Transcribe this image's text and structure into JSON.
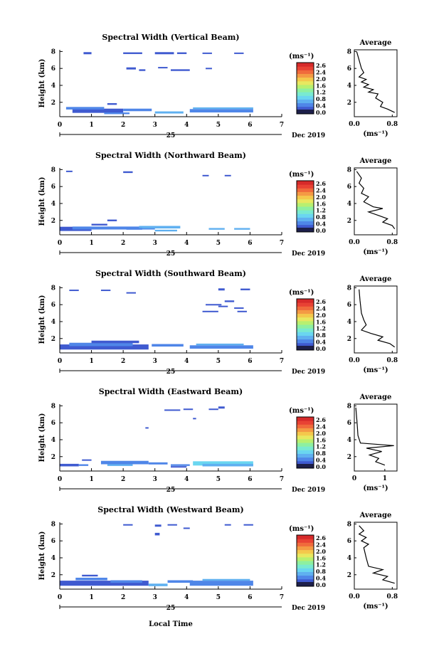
{
  "page": {
    "x_axis_title": "Local Time",
    "date_day": "25",
    "date_label": "Dec 2019",
    "units_label": "(ms⁻¹)",
    "avg_title": "Average",
    "avg_xlabel": "(ms⁻¹)",
    "height_label": "Height (km)"
  },
  "colormap": [
    "#2a2f8f",
    "#3f5ad0",
    "#4f86e8",
    "#5fb0f0",
    "#6ad6f0",
    "#79ead0",
    "#8ef0a0",
    "#b8f070",
    "#e8e860",
    "#f4c84c",
    "#f49a44",
    "#f06a3c",
    "#e84234",
    "#d62a2a"
  ],
  "colorbar": {
    "ticks_full": [
      "2.6",
      "2.4",
      "2.0",
      "1.6",
      "1.2",
      "0.8",
      "0.4",
      "0.0"
    ],
    "ticks_alt": [
      "2.6",
      "2.4",
      "2.0",
      "1.6",
      "1.2",
      "0.8",
      "0.4",
      "0.0"
    ]
  },
  "chart_data": [
    {
      "type": "heatmap",
      "title": "Spectral Width (Vertical Beam)",
      "ylabel": "Height (km)",
      "xlabel": "Local Time",
      "x_ticks": [
        "0",
        "1",
        "2",
        "3",
        "4",
        "5",
        "6",
        "7"
      ],
      "y_ticks": [
        "8",
        "6",
        "4",
        "2"
      ],
      "xlim": [
        0,
        7
      ],
      "ylim": [
        0.3,
        8.2
      ],
      "avg": {
        "title": "Average",
        "x_ticks": [
          "0.0",
          "0.8"
        ],
        "xlim": [
          0,
          0.9
        ],
        "profile": [
          [
            0.05,
            8
          ],
          [
            0.1,
            7
          ],
          [
            0.15,
            6
          ],
          [
            0.2,
            5.5
          ],
          [
            0.1,
            5
          ],
          [
            0.25,
            4.7
          ],
          [
            0.15,
            4.4
          ],
          [
            0.3,
            4.1
          ],
          [
            0.2,
            3.8
          ],
          [
            0.4,
            3.5
          ],
          [
            0.3,
            3.2
          ],
          [
            0.5,
            3
          ],
          [
            0.45,
            2.5
          ],
          [
            0.6,
            2
          ],
          [
            0.55,
            1.5
          ],
          [
            0.7,
            1.2
          ],
          [
            0.85,
            0.8
          ]
        ]
      }
    },
    {
      "type": "heatmap",
      "title": "Spectral Width (Northward Beam)",
      "ylabel": "Height (km)",
      "xlabel": "Local Time",
      "x_ticks": [
        "0",
        "1",
        "2",
        "3",
        "4",
        "5",
        "6",
        "7"
      ],
      "y_ticks": [
        "8",
        "6",
        "4",
        "2"
      ],
      "xlim": [
        0,
        7
      ],
      "ylim": [
        0.3,
        8.2
      ],
      "avg": {
        "title": "Average",
        "x_ticks": [
          "0.0",
          "0.8"
        ],
        "xlim": [
          0,
          0.9
        ],
        "profile": [
          [
            0.05,
            7.8
          ],
          [
            0.15,
            7
          ],
          [
            0.1,
            6.4
          ],
          [
            0.2,
            5.8
          ],
          [
            0.15,
            5.2
          ],
          [
            0.3,
            4.8
          ],
          [
            0.2,
            4.2
          ],
          [
            0.4,
            3.6
          ],
          [
            0.6,
            3.4
          ],
          [
            0.3,
            3
          ],
          [
            0.5,
            2.6
          ],
          [
            0.7,
            2.2
          ],
          [
            0.6,
            1.8
          ],
          [
            0.8,
            1.4
          ],
          [
            0.85,
            1
          ]
        ]
      }
    },
    {
      "type": "heatmap",
      "title": "Spectral Width (Southward Beam)",
      "ylabel": "Height (km)",
      "xlabel": "Local Time",
      "x_ticks": [
        "0",
        "1",
        "2",
        "3",
        "4",
        "5",
        "6",
        "7"
      ],
      "y_ticks": [
        "8",
        "6",
        "4",
        "2"
      ],
      "xlim": [
        0,
        7
      ],
      "ylim": [
        0.3,
        8.2
      ],
      "avg": {
        "title": "Average",
        "x_ticks": [
          "0.0",
          "0.8"
        ],
        "xlim": [
          0,
          0.9
        ],
        "profile": [
          [
            0.1,
            7.8
          ],
          [
            0.12,
            6.5
          ],
          [
            0.15,
            5
          ],
          [
            0.2,
            4.2
          ],
          [
            0.25,
            3.6
          ],
          [
            0.15,
            3
          ],
          [
            0.35,
            2.6
          ],
          [
            0.6,
            2.2
          ],
          [
            0.5,
            1.8
          ],
          [
            0.75,
            1.4
          ],
          [
            0.85,
            1
          ]
        ]
      }
    },
    {
      "type": "heatmap",
      "title": "Spectral Width (Eastward Beam)",
      "ylabel": "Height (km)",
      "xlabel": "Local Time",
      "x_ticks": [
        "0",
        "1",
        "2",
        "3",
        "4",
        "5",
        "6",
        "7"
      ],
      "y_ticks": [
        "8",
        "6",
        "4",
        "2"
      ],
      "xlim": [
        0,
        7
      ],
      "ylim": [
        0.3,
        8.2
      ],
      "avg": {
        "title": "Average",
        "x_ticks": [
          "0",
          "1"
        ],
        "xlim": [
          0,
          1.4
        ],
        "profile": [
          [
            0.05,
            7.8
          ],
          [
            0.08,
            6.5
          ],
          [
            0.1,
            5.5
          ],
          [
            0.12,
            4.5
          ],
          [
            0.2,
            3.6
          ],
          [
            1.3,
            3.3
          ],
          [
            0.4,
            3
          ],
          [
            0.9,
            2.6
          ],
          [
            0.5,
            2.2
          ],
          [
            0.8,
            1.8
          ],
          [
            0.7,
            1.4
          ],
          [
            1.0,
            1
          ]
        ]
      }
    },
    {
      "type": "heatmap",
      "title": "Spectral Width (Westward Beam)",
      "ylabel": "Height (km)",
      "xlabel": "Local Time",
      "x_ticks": [
        "0",
        "1",
        "2",
        "3",
        "4",
        "5",
        "6",
        "7"
      ],
      "y_ticks": [
        "8",
        "6",
        "4",
        "2"
      ],
      "xlim": [
        0,
        7
      ],
      "ylim": [
        0.3,
        8.2
      ],
      "avg": {
        "title": "Average",
        "x_ticks": [
          "0.0",
          "0.8"
        ],
        "xlim": [
          0,
          0.9
        ],
        "profile": [
          [
            0.1,
            7.8
          ],
          [
            0.2,
            7.2
          ],
          [
            0.1,
            6.8
          ],
          [
            0.25,
            6.4
          ],
          [
            0.15,
            6
          ],
          [
            0.3,
            5.6
          ],
          [
            0.2,
            5.2
          ],
          [
            0.25,
            4
          ],
          [
            0.3,
            3
          ],
          [
            0.6,
            2.6
          ],
          [
            0.4,
            2.2
          ],
          [
            0.7,
            1.8
          ],
          [
            0.6,
            1.4
          ],
          [
            0.85,
            1
          ]
        ]
      }
    }
  ],
  "heatmap_patches": [
    [
      [
        0.75,
        7.8,
        0.25,
        0.25,
        1
      ],
      [
        2.0,
        7.8,
        0.6,
        0.2,
        1
      ],
      [
        3.0,
        7.8,
        0.6,
        0.25,
        1
      ],
      [
        3.7,
        7.8,
        0.3,
        0.2,
        1
      ],
      [
        4.5,
        7.8,
        0.3,
        0.15,
        1
      ],
      [
        5.5,
        7.8,
        0.3,
        0.15,
        1
      ],
      [
        2.1,
        6.0,
        0.3,
        0.25,
        1
      ],
      [
        2.5,
        5.8,
        0.2,
        0.2,
        1
      ],
      [
        3.5,
        5.8,
        0.6,
        0.2,
        1
      ],
      [
        4.6,
        6.0,
        0.2,
        0.15,
        1
      ],
      [
        3.1,
        6.1,
        0.3,
        0.15,
        1
      ],
      [
        0.4,
        1.0,
        1.6,
        0.5,
        1
      ],
      [
        0.2,
        1.3,
        1.2,
        0.3,
        2
      ],
      [
        1.5,
        1.8,
        0.3,
        0.2,
        1
      ],
      [
        2.0,
        1.1,
        0.9,
        0.3,
        2
      ],
      [
        3.0,
        0.8,
        0.9,
        0.25,
        3
      ],
      [
        4.1,
        1.0,
        2.0,
        0.4,
        2
      ],
      [
        4.2,
        1.3,
        1.9,
        0.2,
        3
      ],
      [
        1.4,
        0.7,
        0.8,
        0.2,
        2
      ]
    ],
    [
      [
        0.2,
        7.8,
        0.2,
        0.15,
        1
      ],
      [
        2.0,
        7.7,
        0.3,
        0.2,
        1
      ],
      [
        4.5,
        7.3,
        0.2,
        0.15,
        1
      ],
      [
        5.2,
        7.3,
        0.2,
        0.15,
        1
      ],
      [
        0.0,
        1.0,
        1.0,
        0.5,
        1
      ],
      [
        0.4,
        1.1,
        2.6,
        0.35,
        2
      ],
      [
        1.0,
        1.5,
        0.5,
        0.2,
        1
      ],
      [
        1.5,
        2.0,
        0.3,
        0.2,
        1
      ],
      [
        2.5,
        1.2,
        1.3,
        0.3,
        3
      ],
      [
        3.0,
        0.8,
        0.7,
        0.2,
        3
      ],
      [
        4.7,
        1.0,
        0.5,
        0.2,
        3
      ],
      [
        5.5,
        1.0,
        0.5,
        0.2,
        3
      ],
      [
        2.1,
        1.0,
        0.5,
        0.2,
        2
      ]
    ],
    [
      [
        0.3,
        7.7,
        0.3,
        0.15,
        1
      ],
      [
        1.3,
        7.7,
        0.3,
        0.15,
        1
      ],
      [
        2.1,
        7.4,
        0.3,
        0.15,
        1
      ],
      [
        5.0,
        7.8,
        0.2,
        0.25,
        1
      ],
      [
        5.7,
        7.8,
        0.3,
        0.2,
        1
      ],
      [
        5.2,
        6.4,
        0.3,
        0.2,
        1
      ],
      [
        4.6,
        6.0,
        0.5,
        0.15,
        1
      ],
      [
        5.0,
        5.8,
        0.3,
        0.15,
        1
      ],
      [
        5.5,
        5.6,
        0.3,
        0.15,
        1
      ],
      [
        5.6,
        5.2,
        0.3,
        0.15,
        1
      ],
      [
        4.5,
        5.2,
        0.5,
        0.15,
        1
      ],
      [
        0.0,
        1.0,
        2.8,
        0.6,
        1
      ],
      [
        0.3,
        1.3,
        2.0,
        0.4,
        2
      ],
      [
        1.0,
        1.6,
        1.5,
        0.3,
        1
      ],
      [
        2.9,
        1.2,
        1.0,
        0.3,
        2
      ],
      [
        4.1,
        1.0,
        2.0,
        0.4,
        2
      ],
      [
        4.3,
        1.3,
        1.5,
        0.2,
        3
      ]
    ],
    [
      [
        5.0,
        7.8,
        0.2,
        0.25,
        1
      ],
      [
        4.7,
        7.6,
        0.3,
        0.15,
        1
      ],
      [
        3.3,
        7.5,
        0.5,
        0.15,
        1
      ],
      [
        3.9,
        7.6,
        0.3,
        0.15,
        1
      ],
      [
        4.2,
        6.5,
        0.1,
        0.15,
        1
      ],
      [
        2.7,
        5.4,
        0.1,
        0.15,
        1
      ],
      [
        0.0,
        1.0,
        0.6,
        0.3,
        1
      ],
      [
        0.6,
        1.0,
        0.3,
        0.2,
        2
      ],
      [
        0.7,
        1.6,
        0.3,
        0.15,
        1
      ],
      [
        1.3,
        1.3,
        1.5,
        0.4,
        2
      ],
      [
        1.5,
        1.0,
        0.8,
        0.2,
        3
      ],
      [
        2.8,
        1.2,
        0.6,
        0.25,
        2
      ],
      [
        3.5,
        1.0,
        0.6,
        0.2,
        2
      ],
      [
        4.2,
        1.2,
        1.9,
        0.5,
        4
      ],
      [
        4.5,
        1.0,
        1.6,
        0.3,
        3
      ],
      [
        3.5,
        0.8,
        0.5,
        0.15,
        1
      ]
    ],
    [
      [
        2.0,
        7.9,
        0.3,
        0.15,
        1
      ],
      [
        3.0,
        7.8,
        0.2,
        0.25,
        1
      ],
      [
        3.4,
        7.9,
        0.3,
        0.15,
        1
      ],
      [
        3.9,
        7.5,
        0.2,
        0.15,
        1
      ],
      [
        5.2,
        7.9,
        0.2,
        0.15,
        1
      ],
      [
        5.8,
        7.9,
        0.3,
        0.15,
        1
      ],
      [
        3.0,
        6.8,
        0.15,
        0.3,
        1
      ],
      [
        0.0,
        1.0,
        2.8,
        0.6,
        1
      ],
      [
        0.5,
        1.5,
        1.0,
        0.3,
        2
      ],
      [
        0.7,
        1.9,
        0.5,
        0.2,
        1
      ],
      [
        1.6,
        1.2,
        1.0,
        0.3,
        2
      ],
      [
        2.8,
        0.8,
        0.6,
        0.3,
        3
      ],
      [
        3.4,
        1.2,
        0.8,
        0.3,
        2
      ],
      [
        4.1,
        1.0,
        2.0,
        0.6,
        2
      ],
      [
        4.5,
        1.4,
        1.5,
        0.2,
        3
      ]
    ]
  ]
}
